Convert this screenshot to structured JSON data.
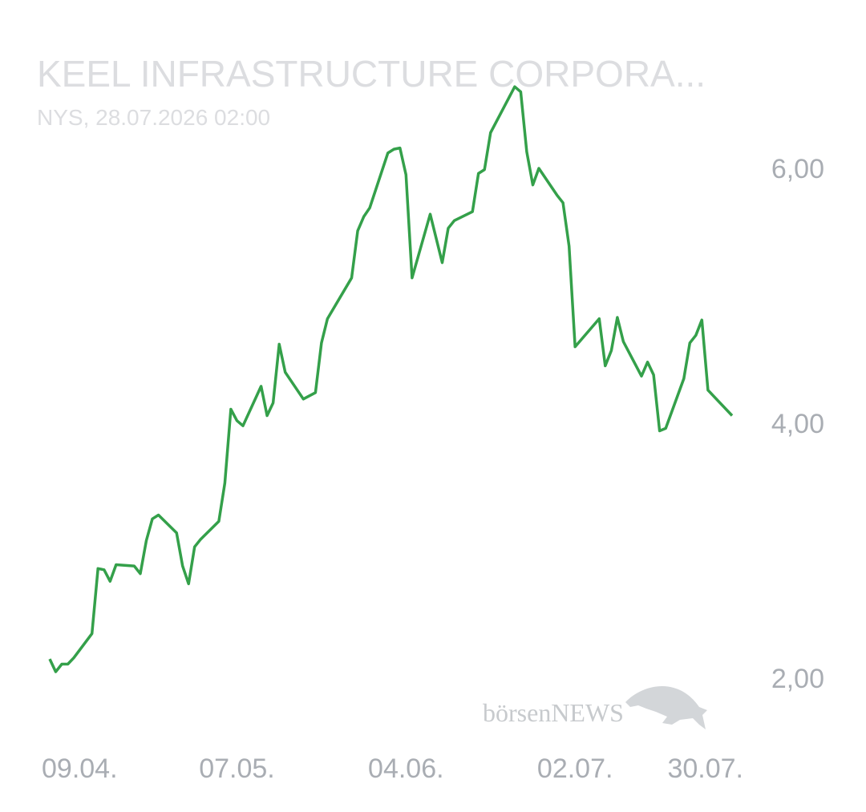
{
  "chart_data": {
    "type": "line",
    "title": "KEEL INFRASTRUCTURE CORPORA...",
    "subtitle": "NYS, 28.07.2026 02:00",
    "watermark": "börsenNEWS",
    "x": [
      "06.04.",
      "07.04.",
      "08.04.",
      "09.04.",
      "10.04.",
      "13.04.",
      "14.04.",
      "15.04.",
      "16.04.",
      "17.04.",
      "20.04.",
      "21.04.",
      "22.04.",
      "23.04.",
      "24.04.",
      "27.04.",
      "28.04.",
      "29.04.",
      "30.04.",
      "01.05.",
      "04.05.",
      "05.05.",
      "06.05.",
      "07.05.",
      "08.05.",
      "11.05.",
      "12.05.",
      "13.05.",
      "14.05.",
      "15.05.",
      "18.05.",
      "20.05.",
      "21.05.",
      "22.05.",
      "26.05.",
      "27.05.",
      "28.05.",
      "29.05.",
      "01.06.",
      "02.06.",
      "03.06.",
      "04.06.",
      "05.06.",
      "08.06.",
      "10.06.",
      "11.06.",
      "12.06.",
      "15.06.",
      "16.06.",
      "17.06.",
      "18.06.",
      "22.06.",
      "23.06.",
      "24.06.",
      "25.06.",
      "26.06.",
      "29.06.",
      "30.06.",
      "01.07.",
      "02.07.",
      "06.07.",
      "07.07.",
      "08.07.",
      "09.07.",
      "10.07.",
      "13.07.",
      "14.07.",
      "15.07.",
      "16.07.",
      "17.07.",
      "20.07.",
      "21.07.",
      "22.07.",
      "23.07.",
      "24.07.",
      "28.07."
    ],
    "series": [
      {
        "color": "#34a04a",
        "values": [
          2.15,
          2.05,
          2.11,
          2.11,
          2.16,
          2.35,
          2.86,
          2.85,
          2.76,
          2.89,
          2.88,
          2.82,
          3.08,
          3.25,
          3.28,
          3.14,
          2.88,
          2.74,
          3.03,
          3.09,
          3.23,
          3.53,
          4.11,
          4.02,
          3.98,
          4.29,
          4.06,
          4.16,
          4.62,
          4.4,
          4.19,
          4.24,
          4.63,
          4.82,
          5.14,
          5.51,
          5.62,
          5.69,
          6.12,
          6.15,
          6.16,
          5.95,
          5.14,
          5.64,
          5.26,
          5.53,
          5.59,
          5.66,
          5.96,
          5.99,
          6.28,
          6.64,
          6.6,
          6.13,
          5.87,
          6.0,
          5.79,
          5.73,
          5.39,
          4.6,
          4.82,
          4.45,
          4.57,
          4.83,
          4.64,
          4.37,
          4.48,
          4.38,
          3.94,
          3.96,
          4.35,
          4.63,
          4.69,
          4.81,
          4.26,
          4.06
        ]
      }
    ],
    "ylim": [
      1.5,
      6.75
    ],
    "yticks": [
      {
        "value": 2,
        "label": "2,00"
      },
      {
        "value": 4,
        "label": "4,00"
      },
      {
        "value": 6,
        "label": "6,00"
      }
    ],
    "xticks": [
      "09.04.",
      "07.05.",
      "04.06.",
      "02.07.",
      "30.07."
    ],
    "grid": false
  }
}
